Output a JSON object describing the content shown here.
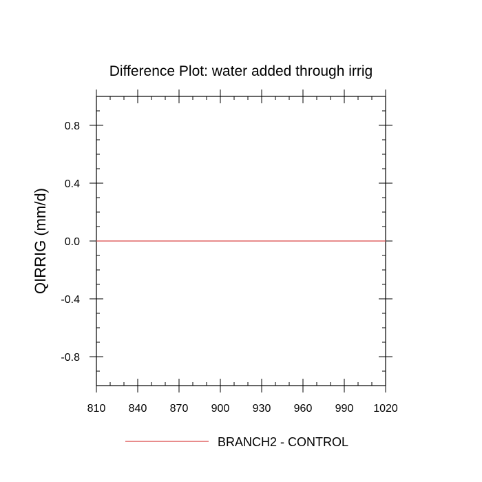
{
  "chart_data": {
    "type": "line",
    "title": "Difference Plot: water added through irrig",
    "xlabel": "",
    "ylabel": "QIRRIG  (mm/d)",
    "xlim": [
      810,
      1020
    ],
    "ylim": [
      -1.0,
      1.0
    ],
    "x_ticks": [
      810,
      840,
      870,
      900,
      930,
      960,
      990,
      1020
    ],
    "x_tick_labels": [
      "810",
      "840",
      "870",
      "900",
      "930",
      "960",
      "990",
      "1020"
    ],
    "y_ticks": [
      -0.8,
      -0.4,
      0.0,
      0.4,
      0.8
    ],
    "y_tick_labels": [
      "-0.8",
      "-0.4",
      "0.0",
      "0.4",
      "0.8"
    ],
    "grid": false,
    "legend_position": "bottom",
    "series": [
      {
        "name": "BRANCH2 - CONTROL",
        "color": "#e06666",
        "x": [
          810,
          1020
        ],
        "y": [
          0.0,
          0.0
        ]
      }
    ]
  }
}
